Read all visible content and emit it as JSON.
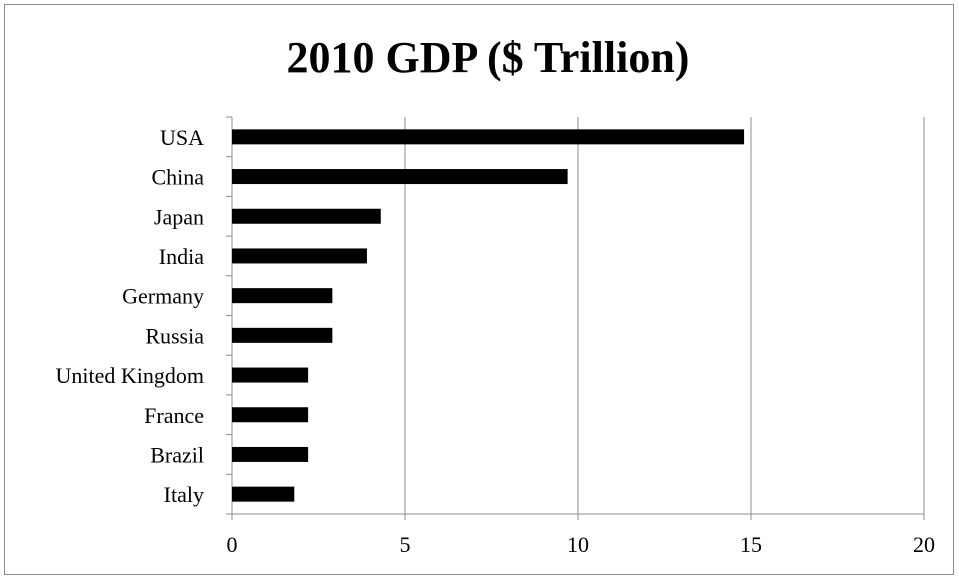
{
  "chart_data": {
    "type": "bar",
    "orientation": "horizontal",
    "title": "2010 GDP ($ Trillion)",
    "xlabel": "",
    "ylabel": "",
    "categories": [
      "USA",
      "China",
      "Japan",
      "India",
      "Germany",
      "Russia",
      "United Kingdom",
      "France",
      "Brazil",
      "Italy"
    ],
    "values": [
      14.8,
      9.7,
      4.3,
      3.9,
      2.9,
      2.9,
      2.2,
      2.2,
      2.2,
      1.8
    ],
    "xlim": [
      0,
      20
    ],
    "xticks": [
      "0",
      "5",
      "10",
      "15",
      "20"
    ],
    "grid": "vertical",
    "legend": "none",
    "bar_color": "#000000",
    "grid_color": "#8c8c8c"
  }
}
